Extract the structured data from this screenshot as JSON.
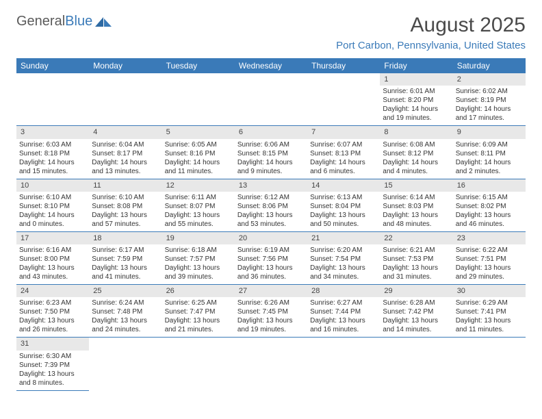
{
  "brand": {
    "name_a": "General",
    "name_b": "Blue"
  },
  "title": "August 2025",
  "location": "Port Carbon, Pennsylvania, United States",
  "colors": {
    "header_bg": "#3a7ab8",
    "header_text": "#ffffff",
    "daynum_bg": "#e8e8e8",
    "border": "#3a7ab8",
    "text": "#333333",
    "title_text": "#4a4a4a",
    "location_text": "#3a7ab8",
    "logo_gray": "#5a5a5a",
    "logo_blue": "#3a7ab8",
    "background": "#ffffff"
  },
  "fonts": {
    "title_size": 30,
    "location_size": 15,
    "th_size": 12,
    "daynum_size": 11,
    "cell_size": 10
  },
  "weekdays": [
    "Sunday",
    "Monday",
    "Tuesday",
    "Wednesday",
    "Thursday",
    "Friday",
    "Saturday"
  ],
  "weeks": [
    [
      null,
      null,
      null,
      null,
      null,
      {
        "n": "1",
        "sr": "Sunrise: 6:01 AM",
        "ss": "Sunset: 8:20 PM",
        "d1": "Daylight: 14 hours",
        "d2": "and 19 minutes."
      },
      {
        "n": "2",
        "sr": "Sunrise: 6:02 AM",
        "ss": "Sunset: 8:19 PM",
        "d1": "Daylight: 14 hours",
        "d2": "and 17 minutes."
      }
    ],
    [
      {
        "n": "3",
        "sr": "Sunrise: 6:03 AM",
        "ss": "Sunset: 8:18 PM",
        "d1": "Daylight: 14 hours",
        "d2": "and 15 minutes."
      },
      {
        "n": "4",
        "sr": "Sunrise: 6:04 AM",
        "ss": "Sunset: 8:17 PM",
        "d1": "Daylight: 14 hours",
        "d2": "and 13 minutes."
      },
      {
        "n": "5",
        "sr": "Sunrise: 6:05 AM",
        "ss": "Sunset: 8:16 PM",
        "d1": "Daylight: 14 hours",
        "d2": "and 11 minutes."
      },
      {
        "n": "6",
        "sr": "Sunrise: 6:06 AM",
        "ss": "Sunset: 8:15 PM",
        "d1": "Daylight: 14 hours",
        "d2": "and 9 minutes."
      },
      {
        "n": "7",
        "sr": "Sunrise: 6:07 AM",
        "ss": "Sunset: 8:13 PM",
        "d1": "Daylight: 14 hours",
        "d2": "and 6 minutes."
      },
      {
        "n": "8",
        "sr": "Sunrise: 6:08 AM",
        "ss": "Sunset: 8:12 PM",
        "d1": "Daylight: 14 hours",
        "d2": "and 4 minutes."
      },
      {
        "n": "9",
        "sr": "Sunrise: 6:09 AM",
        "ss": "Sunset: 8:11 PM",
        "d1": "Daylight: 14 hours",
        "d2": "and 2 minutes."
      }
    ],
    [
      {
        "n": "10",
        "sr": "Sunrise: 6:10 AM",
        "ss": "Sunset: 8:10 PM",
        "d1": "Daylight: 14 hours",
        "d2": "and 0 minutes."
      },
      {
        "n": "11",
        "sr": "Sunrise: 6:10 AM",
        "ss": "Sunset: 8:08 PM",
        "d1": "Daylight: 13 hours",
        "d2": "and 57 minutes."
      },
      {
        "n": "12",
        "sr": "Sunrise: 6:11 AM",
        "ss": "Sunset: 8:07 PM",
        "d1": "Daylight: 13 hours",
        "d2": "and 55 minutes."
      },
      {
        "n": "13",
        "sr": "Sunrise: 6:12 AM",
        "ss": "Sunset: 8:06 PM",
        "d1": "Daylight: 13 hours",
        "d2": "and 53 minutes."
      },
      {
        "n": "14",
        "sr": "Sunrise: 6:13 AM",
        "ss": "Sunset: 8:04 PM",
        "d1": "Daylight: 13 hours",
        "d2": "and 50 minutes."
      },
      {
        "n": "15",
        "sr": "Sunrise: 6:14 AM",
        "ss": "Sunset: 8:03 PM",
        "d1": "Daylight: 13 hours",
        "d2": "and 48 minutes."
      },
      {
        "n": "16",
        "sr": "Sunrise: 6:15 AM",
        "ss": "Sunset: 8:02 PM",
        "d1": "Daylight: 13 hours",
        "d2": "and 46 minutes."
      }
    ],
    [
      {
        "n": "17",
        "sr": "Sunrise: 6:16 AM",
        "ss": "Sunset: 8:00 PM",
        "d1": "Daylight: 13 hours",
        "d2": "and 43 minutes."
      },
      {
        "n": "18",
        "sr": "Sunrise: 6:17 AM",
        "ss": "Sunset: 7:59 PM",
        "d1": "Daylight: 13 hours",
        "d2": "and 41 minutes."
      },
      {
        "n": "19",
        "sr": "Sunrise: 6:18 AM",
        "ss": "Sunset: 7:57 PM",
        "d1": "Daylight: 13 hours",
        "d2": "and 39 minutes."
      },
      {
        "n": "20",
        "sr": "Sunrise: 6:19 AM",
        "ss": "Sunset: 7:56 PM",
        "d1": "Daylight: 13 hours",
        "d2": "and 36 minutes."
      },
      {
        "n": "21",
        "sr": "Sunrise: 6:20 AM",
        "ss": "Sunset: 7:54 PM",
        "d1": "Daylight: 13 hours",
        "d2": "and 34 minutes."
      },
      {
        "n": "22",
        "sr": "Sunrise: 6:21 AM",
        "ss": "Sunset: 7:53 PM",
        "d1": "Daylight: 13 hours",
        "d2": "and 31 minutes."
      },
      {
        "n": "23",
        "sr": "Sunrise: 6:22 AM",
        "ss": "Sunset: 7:51 PM",
        "d1": "Daylight: 13 hours",
        "d2": "and 29 minutes."
      }
    ],
    [
      {
        "n": "24",
        "sr": "Sunrise: 6:23 AM",
        "ss": "Sunset: 7:50 PM",
        "d1": "Daylight: 13 hours",
        "d2": "and 26 minutes."
      },
      {
        "n": "25",
        "sr": "Sunrise: 6:24 AM",
        "ss": "Sunset: 7:48 PM",
        "d1": "Daylight: 13 hours",
        "d2": "and 24 minutes."
      },
      {
        "n": "26",
        "sr": "Sunrise: 6:25 AM",
        "ss": "Sunset: 7:47 PM",
        "d1": "Daylight: 13 hours",
        "d2": "and 21 minutes."
      },
      {
        "n": "27",
        "sr": "Sunrise: 6:26 AM",
        "ss": "Sunset: 7:45 PM",
        "d1": "Daylight: 13 hours",
        "d2": "and 19 minutes."
      },
      {
        "n": "28",
        "sr": "Sunrise: 6:27 AM",
        "ss": "Sunset: 7:44 PM",
        "d1": "Daylight: 13 hours",
        "d2": "and 16 minutes."
      },
      {
        "n": "29",
        "sr": "Sunrise: 6:28 AM",
        "ss": "Sunset: 7:42 PM",
        "d1": "Daylight: 13 hours",
        "d2": "and 14 minutes."
      },
      {
        "n": "30",
        "sr": "Sunrise: 6:29 AM",
        "ss": "Sunset: 7:41 PM",
        "d1": "Daylight: 13 hours",
        "d2": "and 11 minutes."
      }
    ],
    [
      {
        "n": "31",
        "sr": "Sunrise: 6:30 AM",
        "ss": "Sunset: 7:39 PM",
        "d1": "Daylight: 13 hours",
        "d2": "and 8 minutes."
      },
      null,
      null,
      null,
      null,
      null,
      null
    ]
  ]
}
